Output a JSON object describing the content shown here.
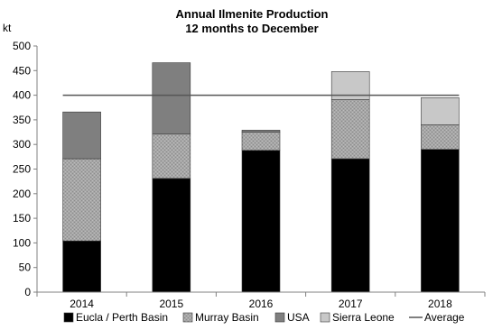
{
  "chart_data": {
    "type": "bar",
    "stacked": true,
    "title": "Annual Ilmenite Production",
    "subtitle": "12 months to December",
    "ylabel": "kt",
    "xlabel": "",
    "ylim": [
      0,
      500
    ],
    "yticks": [
      0,
      50,
      100,
      150,
      200,
      250,
      300,
      350,
      400,
      450,
      500
    ],
    "grid": false,
    "legend_position": "bottom",
    "categories": [
      "2014",
      "2015",
      "2016",
      "2017",
      "2018"
    ],
    "series": [
      {
        "name": "Eucla / Perth Basin",
        "color": "#000000",
        "pattern": "solid",
        "values": [
          104,
          231,
          288,
          271,
          290
        ]
      },
      {
        "name": "Murray Basin",
        "color": "#a6a6a6",
        "pattern": "speckled",
        "values": [
          167,
          90,
          37,
          120,
          50
        ]
      },
      {
        "name": "USA",
        "color": "#7f7f7f",
        "pattern": "solid",
        "values": [
          95,
          145,
          4,
          0,
          0
        ]
      },
      {
        "name": "Sierra Leone",
        "color": "#c8c8c8",
        "pattern": "solid",
        "values": [
          0,
          0,
          0,
          57,
          55
        ]
      }
    ],
    "average": {
      "name": "Average",
      "value": 400,
      "color": "#555555"
    }
  }
}
